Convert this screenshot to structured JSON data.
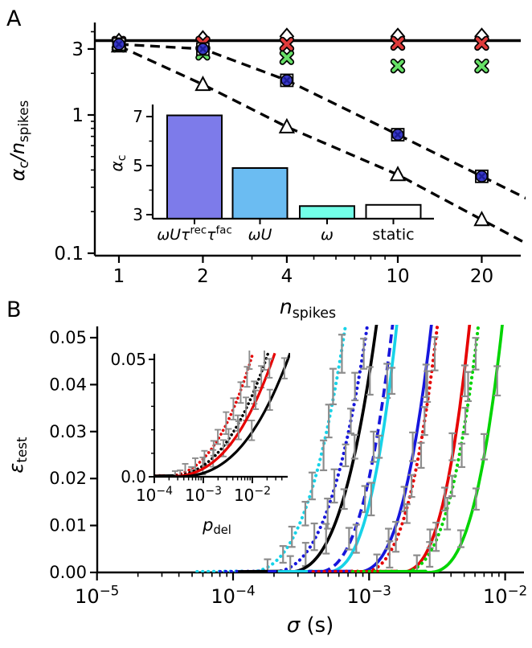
{
  "chart_data": {
    "panels": [
      {
        "id": "A",
        "type": "scatter",
        "xscale": "log",
        "yscale": "log",
        "xlabel": [
          {
            "t": "n",
            "i": 1
          },
          {
            "t": "spikes",
            "sub": 1
          }
        ],
        "ylabel": [
          {
            "t": "α",
            "i": 1
          },
          {
            "t": "c",
            "sub": 1
          },
          {
            "t": "/",
            "i": 1
          },
          {
            "t": "n",
            "i": 1
          },
          {
            "t": "spikes",
            "sub": 1
          }
        ],
        "x_ticks": [
          {
            "v": 1,
            "l": "1"
          },
          {
            "v": 2,
            "l": "2"
          },
          {
            "v": 4,
            "l": "4"
          },
          {
            "v": 10,
            "l": "10"
          },
          {
            "v": 20,
            "l": "20"
          }
        ],
        "x_minor": [
          3,
          5,
          6,
          7,
          8,
          9
        ],
        "y_ticks": [
          {
            "v": 3,
            "l": "3"
          },
          {
            "v": 1,
            "l": "1"
          },
          {
            "v": 0.1,
            "l": "0.1"
          }
        ],
        "y_minor": [
          4,
          2,
          0.9,
          0.8,
          0.7,
          0.6,
          0.5,
          0.4,
          0.3,
          0.2
        ],
        "hline_value": 3.45,
        "series": [
          {
            "name": "open-triangle",
            "marker": "triangle",
            "color": "#ffffff",
            "x": [
              1,
              2,
              4,
              10,
              20
            ],
            "y": [
              3.15,
              1.66,
              0.82,
              0.37,
              0.175
            ],
            "dashed_fit": true
          },
          {
            "name": "green-x",
            "marker": "x",
            "color": "#67e167",
            "x": [
              1,
              2,
              4,
              10,
              20
            ],
            "y": [
              3.2,
              2.8,
              2.6,
              2.26,
              2.26
            ]
          },
          {
            "name": "open-diamond",
            "marker": "diamond",
            "color": "#ffffff",
            "x": [
              1,
              2,
              4,
              10,
              20
            ],
            "y": [
              3.4,
              3.55,
              3.7,
              3.7,
              3.7
            ]
          },
          {
            "name": "red-x",
            "marker": "x",
            "color": "#df3b3b",
            "x": [
              1,
              2,
              4,
              10,
              20
            ],
            "y": [
              3.3,
              3.3,
              3.25,
              3.3,
              3.3
            ]
          },
          {
            "name": "blue-circle-square",
            "marker": "circle-square",
            "color": "#3a3ac9",
            "x": [
              1,
              2,
              4,
              10,
              20
            ],
            "y": [
              3.25,
              3.0,
              1.78,
              0.72,
              0.36
            ],
            "dashed_fit": true
          }
        ],
        "inset": {
          "type": "bar",
          "ylabel": [
            {
              "t": "α",
              "i": 1
            },
            {
              "t": "c",
              "sub": 1
            }
          ],
          "categories": [
            [
              {
                "t": "ωUτ",
                "i": 1
              },
              {
                "t": "rec",
                "sup": 1
              },
              {
                "t": "τ",
                "i": 1
              },
              {
                "t": "fac",
                "sup": 1
              }
            ],
            [
              {
                "t": "ωU",
                "i": 1
              }
            ],
            [
              {
                "t": "ω",
                "i": 1
              }
            ],
            [
              {
                "t": "static"
              }
            ]
          ],
          "values": [
            7.05,
            4.9,
            3.35,
            3.4
          ],
          "colors": [
            "#7d7bea",
            "#6bbcf2",
            "#72ffe8",
            "#ffffff"
          ],
          "y_ticks": [
            {
              "v": 3,
              "l": "3"
            },
            {
              "v": 5,
              "l": "5"
            },
            {
              "v": 7,
              "l": "7"
            }
          ],
          "y_minor": [
            4,
            6
          ]
        }
      },
      {
        "id": "B",
        "type": "line",
        "xscale": "log",
        "xlabel": [
          {
            "t": "σ",
            "i": 1
          },
          {
            "t": " (s)"
          }
        ],
        "ylabel": [
          {
            "t": "ε",
            "i": 1
          },
          {
            "t": "test",
            "sub": 1
          }
        ],
        "x_ticks_exp": [
          -5,
          -4,
          -3,
          -2
        ],
        "y_ticks": [
          {
            "v": 0,
            "l": "0.00"
          },
          {
            "v": 0.01,
            "l": "0.01"
          },
          {
            "v": 0.02,
            "l": "0.02"
          },
          {
            "v": 0.03,
            "l": "0.03"
          },
          {
            "v": 0.04,
            "l": "0.04"
          },
          {
            "v": 0.05,
            "l": "0.05"
          }
        ],
        "ylim": [
          0,
          0.05
        ],
        "errorbar_color": "#8c8c8c",
        "curves": [
          {
            "name": "cyan-dotted",
            "color": "#17d3e8",
            "style": "dotted",
            "sigma_onset": 0.000115,
            "sigma_at_eps005": 0.00065
          },
          {
            "name": "blue-dotted",
            "color": "#1616dc",
            "style": "dotted",
            "sigma_onset": 0.00017,
            "sigma_at_eps005": 0.00094
          },
          {
            "name": "black-solid",
            "color": "#000000",
            "style": "solid",
            "sigma_onset": 0.00023,
            "sigma_at_eps005": 0.0011
          },
          {
            "name": "blue-dashed",
            "color": "#1616dc",
            "style": "dashed",
            "sigma_onset": 0.00038,
            "sigma_at_eps005": 0.00145
          },
          {
            "name": "cyan-solid",
            "color": "#17d3e8",
            "style": "solid",
            "sigma_onset": 0.00045,
            "sigma_at_eps005": 0.00156
          },
          {
            "name": "blue-solid",
            "color": "#1616dc",
            "style": "solid",
            "sigma_onset": 0.00075,
            "sigma_at_eps005": 0.0028
          },
          {
            "name": "red-dotted",
            "color": "#e60000",
            "style": "dotted",
            "sigma_onset": 0.00082,
            "sigma_at_eps005": 0.0031
          },
          {
            "name": "red-solid",
            "color": "#e60000",
            "style": "solid",
            "sigma_onset": 0.0016,
            "sigma_at_eps005": 0.00535
          },
          {
            "name": "green-dotted",
            "color": "#00d400",
            "style": "dotted",
            "sigma_onset": 0.0016,
            "sigma_at_eps005": 0.0062
          },
          {
            "name": "green-solid",
            "color": "#00d400",
            "style": "solid",
            "sigma_onset": 0.0026,
            "sigma_at_eps005": 0.0093
          }
        ],
        "inset": {
          "type": "line",
          "xlabel": [
            {
              "t": "p",
              "i": 1
            },
            {
              "t": "del",
              "sub": 1
            }
          ],
          "x_ticks_exp": [
            -4,
            -3,
            -2
          ],
          "y_ticks": [
            {
              "v": 0,
              "l": "0.0"
            },
            {
              "v": 0.05,
              "l": "0.05"
            }
          ],
          "curves": [
            {
              "name": "red-dotted",
              "color": "#e60000",
              "style": "dotted",
              "p_onset": 0.00012,
              "p_at_eps005": 0.0094
            },
            {
              "name": "black-dotted",
              "color": "#000000",
              "style": "dotted",
              "p_onset": 0.000135,
              "p_at_eps005": 0.019
            },
            {
              "name": "red-solid",
              "color": "#e60000",
              "style": "solid",
              "p_onset": 0.00016,
              "p_at_eps005": 0.026
            },
            {
              "name": "black-solid",
              "color": "#000000",
              "style": "solid",
              "p_onset": 0.00024,
              "p_at_eps005": 0.053
            }
          ]
        }
      }
    ]
  }
}
